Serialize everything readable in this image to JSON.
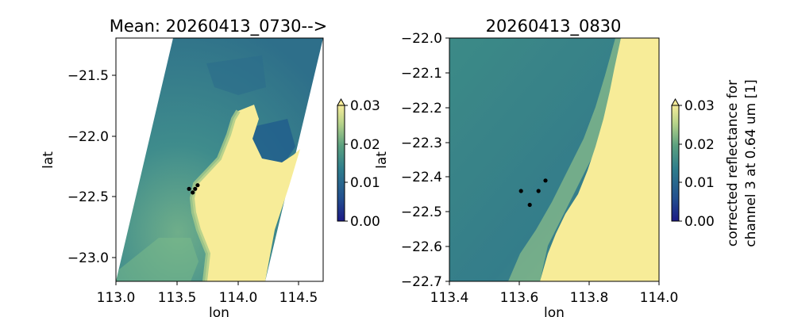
{
  "chart_data": [
    {
      "type": "heatmap",
      "title": "Mean: 20260413_0730-->",
      "xlabel": "lon",
      "ylabel": "lat",
      "xlim": [
        113.0,
        114.7
      ],
      "ylim": [
        -23.2,
        -21.2
      ],
      "xticks": [
        "113.0",
        "113.5",
        "114.0",
        "114.5"
      ],
      "yticks": [
        "−21.5",
        "−22.0",
        "−22.5",
        "−23.0"
      ],
      "points": [
        {
          "lon": 113.6,
          "lat": -22.44
        },
        {
          "lon": 113.63,
          "lat": -22.47
        },
        {
          "lon": 113.65,
          "lat": -22.44
        },
        {
          "lon": 113.67,
          "lat": -22.41
        }
      ],
      "colorbar": {
        "label": "",
        "range": [
          0.0,
          0.03
        ],
        "ticks": [
          "0.00",
          "0.01",
          "0.02",
          "0.03"
        ]
      }
    },
    {
      "type": "heatmap",
      "title": "20260413_0830",
      "xlabel": "lon",
      "ylabel": "lat",
      "xlim": [
        113.4,
        114.0
      ],
      "ylim": [
        -22.7,
        -22.0
      ],
      "xticks": [
        "113.4",
        "113.6",
        "113.8",
        "114.0"
      ],
      "yticks": [
        "−22.0",
        "−22.1",
        "−22.2",
        "−22.3",
        "−22.4",
        "−22.5",
        "−22.6",
        "−22.7"
      ],
      "points": [
        {
          "lon": 113.605,
          "lat": -22.44
        },
        {
          "lon": 113.63,
          "lat": -22.48
        },
        {
          "lon": 113.655,
          "lat": -22.44
        },
        {
          "lon": 113.675,
          "lat": -22.41
        }
      ],
      "colorbar": {
        "label": "corrected reflectance for channel 3 at 0.64 um [1]",
        "range": [
          0.0,
          0.03
        ],
        "ticks": [
          "0.00",
          "0.01",
          "0.02",
          "0.03"
        ]
      }
    }
  ],
  "colors": {
    "low": "#1a1a8c",
    "mid": "#2f7f8e",
    "high": "#f5ea95",
    "land": "#f7ec98"
  }
}
